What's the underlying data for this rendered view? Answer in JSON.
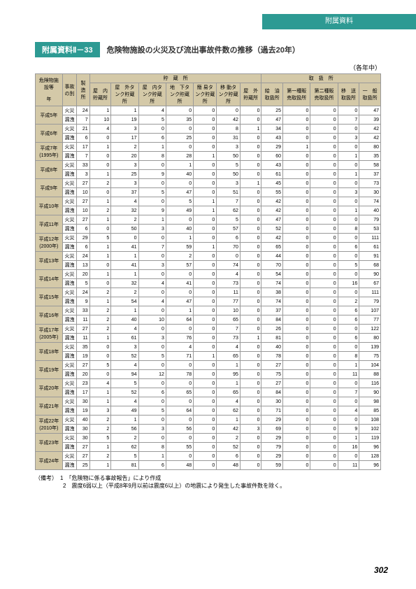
{
  "header": "附属資料",
  "badge": "附属資料Ⅱ－33",
  "title": "危険物施設の火災及び流出事故件数の推移（過去20年）",
  "unit": "（各年中）",
  "colgroup1": [
    "危険物施設等",
    "事故の別",
    "製造所",
    "貯　蔵　所",
    "取　扱　所"
  ],
  "colgroup2_storage": [
    "屋　内貯蔵所",
    "屋　外タンク貯蔵所",
    "屋　内タンク貯蔵所",
    "地　下タンク貯蔵所",
    "簡 易タンク貯蔵所",
    "移 動タンク貯蔵所",
    "屋　外貯蔵所"
  ],
  "colgroup2_handling": [
    "給　油取扱所",
    "第一種販　売取扱所",
    "第二種販　売取扱所",
    "移　送取扱所",
    "一　般取扱所"
  ],
  "rowlabel_year": "年",
  "years": [
    {
      "y": "平成5年",
      "fire": [
        24,
        1,
        1,
        4,
        0,
        0,
        0,
        0,
        25,
        0,
        0,
        0,
        47
      ],
      "leak": [
        7,
        10,
        19,
        5,
        35,
        0,
        42,
        0,
        47,
        0,
        0,
        7,
        39
      ]
    },
    {
      "y": "平成6年",
      "fire": [
        21,
        4,
        3,
        0,
        0,
        0,
        8,
        1,
        34,
        0,
        0,
        0,
        42
      ],
      "leak": [
        6,
        0,
        17,
        6,
        25,
        0,
        31,
        0,
        43,
        0,
        0,
        3,
        42
      ]
    },
    {
      "y": "平成7年(1995年)",
      "fire": [
        17,
        1,
        2,
        1,
        0,
        0,
        3,
        0,
        29,
        1,
        0,
        0,
        80
      ],
      "leak": [
        7,
        0,
        20,
        8,
        28,
        1,
        50,
        0,
        60,
        0,
        0,
        1,
        35
      ]
    },
    {
      "y": "平成8年",
      "fire": [
        33,
        0,
        3,
        0,
        1,
        0,
        5,
        0,
        43,
        0,
        0,
        0,
        58
      ],
      "leak": [
        3,
        1,
        25,
        9,
        40,
        0,
        50,
        0,
        61,
        0,
        0,
        1,
        37
      ]
    },
    {
      "y": "平成9年",
      "fire": [
        27,
        2,
        3,
        0,
        0,
        0,
        3,
        1,
        45,
        0,
        0,
        0,
        73
      ],
      "leak": [
        10,
        0,
        37,
        5,
        47,
        0,
        51,
        0,
        55,
        0,
        0,
        3,
        30
      ]
    },
    {
      "y": "平成10年",
      "fire": [
        27,
        1,
        4,
        0,
        5,
        1,
        7,
        0,
        42,
        0,
        0,
        0,
        74
      ],
      "leak": [
        10,
        2,
        32,
        9,
        49,
        1,
        62,
        0,
        42,
        0,
        0,
        1,
        40
      ]
    },
    {
      "y": "平成11年",
      "fire": [
        27,
        1,
        2,
        1,
        0,
        0,
        5,
        0,
        47,
        0,
        0,
        0,
        79
      ],
      "leak": [
        6,
        0,
        50,
        3,
        40,
        0,
        57,
        0,
        52,
        0,
        0,
        8,
        53
      ]
    },
    {
      "y": "平成12年(2000年)",
      "fire": [
        29,
        5,
        0,
        0,
        1,
        0,
        6,
        0,
        42,
        0,
        0,
        0,
        111
      ],
      "leak": [
        6,
        1,
        41,
        7,
        59,
        1,
        70,
        0,
        65,
        0,
        0,
        6,
        61
      ]
    },
    {
      "y": "平成13年",
      "fire": [
        24,
        1,
        1,
        0,
        2,
        0,
        0,
        0,
        44,
        0,
        0,
        0,
        91
      ],
      "leak": [
        13,
        0,
        41,
        3,
        57,
        0,
        74,
        0,
        70,
        0,
        0,
        5,
        68
      ]
    },
    {
      "y": "平成14年",
      "fire": [
        20,
        1,
        1,
        0,
        0,
        0,
        4,
        0,
        54,
        0,
        0,
        0,
        90
      ],
      "leak": [
        5,
        0,
        32,
        4,
        41,
        0,
        73,
        0,
        74,
        0,
        0,
        16,
        67
      ]
    },
    {
      "y": "平成15年",
      "fire": [
        24,
        2,
        2,
        0,
        0,
        0,
        11,
        0,
        38,
        0,
        0,
        0,
        111
      ],
      "leak": [
        9,
        1,
        54,
        4,
        47,
        0,
        77,
        0,
        74,
        0,
        0,
        2,
        79
      ]
    },
    {
      "y": "平成16年",
      "fire": [
        33,
        2,
        1,
        0,
        1,
        0,
        10,
        0,
        37,
        0,
        0,
        6,
        107
      ],
      "leak": [
        11,
        2,
        40,
        10,
        64,
        0,
        65,
        0,
        84,
        0,
        0,
        6,
        77
      ]
    },
    {
      "y": "平成17年(2005年)",
      "fire": [
        27,
        2,
        4,
        0,
        0,
        0,
        7,
        0,
        26,
        0,
        0,
        0,
        122
      ],
      "leak": [
        11,
        1,
        61,
        3,
        76,
        0,
        73,
        1,
        81,
        0,
        0,
        6,
        80
      ]
    },
    {
      "y": "平成18年",
      "fire": [
        35,
        0,
        3,
        0,
        4,
        0,
        4,
        0,
        40,
        0,
        0,
        0,
        139
      ],
      "leak": [
        19,
        0,
        52,
        5,
        71,
        1,
        65,
        0,
        78,
        0,
        0,
        8,
        75
      ]
    },
    {
      "y": "平成19年",
      "fire": [
        27,
        5,
        4,
        0,
        0,
        0,
        1,
        0,
        27,
        0,
        0,
        1,
        104
      ],
      "leak": [
        20,
        0,
        94,
        12,
        78,
        0,
        95,
        0,
        75,
        0,
        0,
        11,
        88
      ]
    },
    {
      "y": "平成20年",
      "fire": [
        23,
        4,
        5,
        0,
        0,
        0,
        1,
        0,
        27,
        0,
        0,
        0,
        116
      ],
      "leak": [
        17,
        1,
        52,
        6,
        65,
        0,
        65,
        0,
        84,
        0,
        0,
        7,
        90
      ]
    },
    {
      "y": "平成21年",
      "fire": [
        30,
        1,
        4,
        0,
        0,
        0,
        4,
        0,
        30,
        0,
        0,
        0,
        98
      ],
      "leak": [
        19,
        3,
        49,
        5,
        64,
        0,
        62,
        0,
        71,
        0,
        0,
        4,
        85
      ]
    },
    {
      "y": "平成22年(2010年)",
      "fire": [
        40,
        2,
        1,
        0,
        0,
        0,
        1,
        0,
        29,
        0,
        0,
        0,
        108
      ],
      "leak": [
        30,
        2,
        56,
        3,
        56,
        0,
        42,
        3,
        69,
        0,
        0,
        9,
        102
      ]
    },
    {
      "y": "平成23年",
      "fire": [
        30,
        5,
        2,
        0,
        0,
        0,
        2,
        0,
        29,
        0,
        0,
        1,
        119
      ],
      "leak": [
        27,
        1,
        62,
        8,
        55,
        0,
        52,
        0,
        79,
        0,
        0,
        16,
        96
      ]
    },
    {
      "y": "平成24年",
      "fire": [
        27,
        2,
        5,
        1,
        0,
        0,
        6,
        0,
        29,
        0,
        0,
        0,
        128
      ],
      "leak": [
        25,
        1,
        81,
        6,
        48,
        0,
        48,
        0,
        59,
        0,
        0,
        11,
        96
      ]
    }
  ],
  "notes": [
    "（備考）　1　「危険物に係る事故報告」により作成",
    "　　　　　2　震度6弱以上（平成8年9月以前は震度6以上）の地震により発生した事故件数を除く。"
  ],
  "page": "302",
  "colors": {
    "teal": "#2d9a93",
    "bg": "#d4c9a8"
  }
}
